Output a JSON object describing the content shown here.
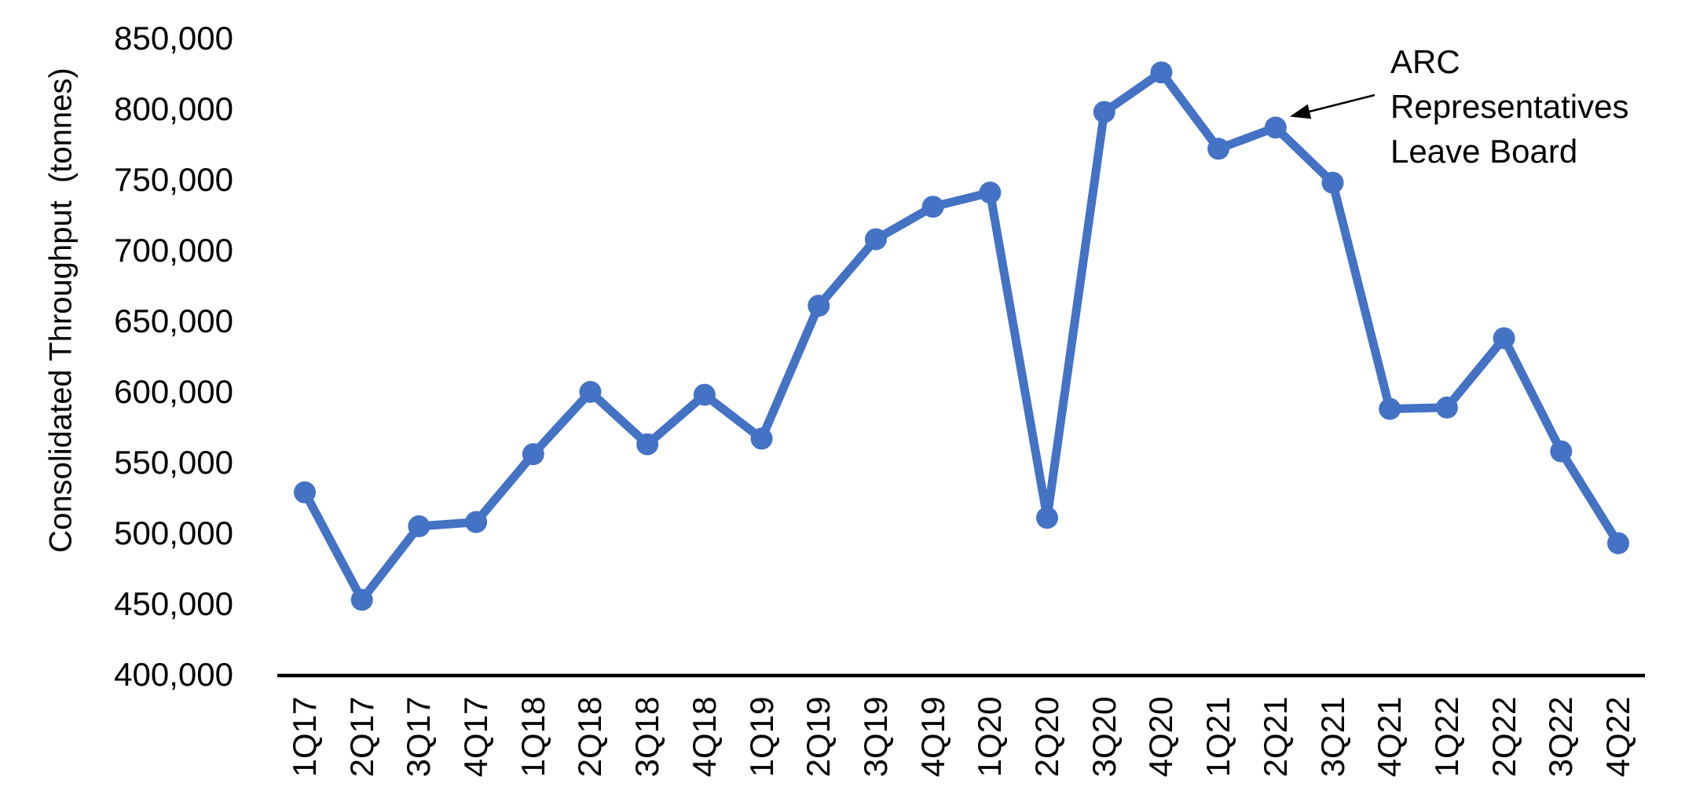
{
  "chart_data": {
    "type": "line",
    "title": "",
    "xlabel": "",
    "ylabel": "Consolidated Throughput  (tonnes)",
    "categories": [
      "1Q17",
      "2Q17",
      "3Q17",
      "4Q17",
      "1Q18",
      "2Q18",
      "3Q18",
      "4Q18",
      "1Q19",
      "2Q19",
      "3Q19",
      "4Q19",
      "1Q20",
      "2Q20",
      "3Q20",
      "4Q20",
      "1Q21",
      "2Q21",
      "3Q21",
      "4Q21",
      "1Q22",
      "2Q22",
      "3Q22",
      "4Q22"
    ],
    "series": [
      {
        "name": "Consolidated Throughput (tonnes)",
        "values": [
          529000,
          453000,
          505000,
          508000,
          556000,
          600000,
          563000,
          598000,
          567000,
          661000,
          708000,
          731000,
          741000,
          511000,
          798000,
          826000,
          772000,
          787000,
          748000,
          588000,
          589000,
          638000,
          558000,
          493000
        ]
      }
    ],
    "ylim": [
      400000,
      850000
    ],
    "ytick_step": 50000,
    "ytick_labels": [
      "850,000",
      "800,000",
      "750,000",
      "700,000",
      "650,000",
      "600,000",
      "550,000",
      "500,000",
      "450,000",
      "400,000"
    ],
    "grid": false,
    "legend": "none",
    "line_color": "#4472C4",
    "marker": "circle",
    "axis_color": "#000000",
    "annotation": {
      "lines": [
        "ARC",
        "Representatives",
        "Leave Board"
      ],
      "target_category": "2Q21"
    }
  }
}
